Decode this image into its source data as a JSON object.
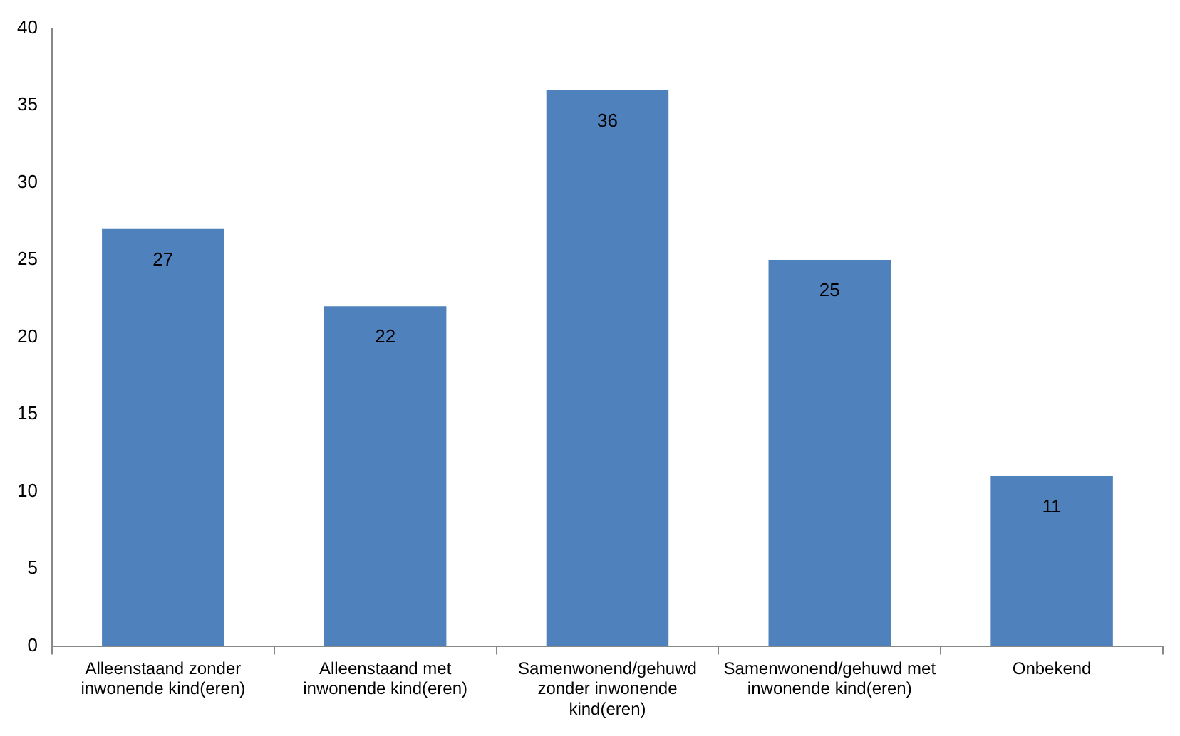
{
  "chart_data": {
    "type": "bar",
    "categories": [
      "Alleenstaand zonder inwonende kind(eren)",
      "Alleenstaand met inwonende kind(eren)",
      "Samenwonend/gehuwd zonder inwonende kind(eren)",
      "Samenwonend/gehuwd met inwonende kind(eren)",
      "Onbekend"
    ],
    "values": [
      27,
      22,
      36,
      25,
      11
    ],
    "color": "#4f81bd",
    "ylim": [
      0,
      40
    ],
    "yticks": [
      0,
      5,
      10,
      15,
      20,
      25,
      30,
      35,
      40
    ],
    "grid": false,
    "legend": false,
    "data_labels": true
  }
}
